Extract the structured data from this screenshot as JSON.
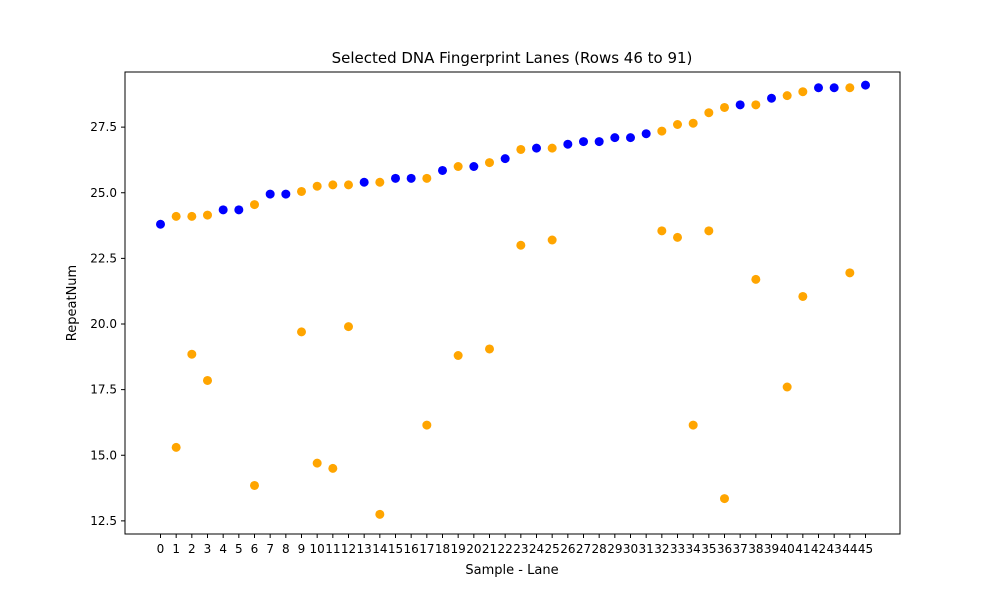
{
  "chart_data": {
    "type": "scatter",
    "title": "Selected DNA Fingerprint Lanes (Rows 46 to 91)",
    "xlabel": "Sample - Lane",
    "ylabel": "RepeatNum",
    "ylim": [
      12.0,
      29.6
    ],
    "yticks": [
      "12.5",
      "15.0",
      "17.5",
      "20.0",
      "22.5",
      "25.0",
      "27.5"
    ],
    "ytick_values": [
      12.5,
      15.0,
      17.5,
      20.0,
      22.5,
      25.0,
      27.5
    ],
    "x_categories": [
      "0",
      "1",
      "2",
      "3",
      "4",
      "5",
      "6",
      "7",
      "8",
      "9",
      "10",
      "11",
      "12",
      "13",
      "14",
      "15",
      "16",
      "17",
      "18",
      "19",
      "20",
      "21",
      "22",
      "23",
      "24",
      "25",
      "26",
      "27",
      "28",
      "29",
      "30",
      "31",
      "32",
      "33",
      "34",
      "35",
      "36",
      "37",
      "38",
      "39",
      "40",
      "41",
      "42",
      "43",
      "44",
      "45"
    ],
    "grid": false,
    "legend": "none",
    "colors": {
      "blue": "#0000ff",
      "orange": "#ffa500"
    },
    "series": [
      {
        "color": "blue",
        "points": [
          {
            "x": 0,
            "y": 23.8
          },
          {
            "x": 4,
            "y": 24.35
          },
          {
            "x": 5,
            "y": 24.35
          },
          {
            "x": 7,
            "y": 24.95
          },
          {
            "x": 8,
            "y": 24.95
          },
          {
            "x": 13,
            "y": 25.4
          },
          {
            "x": 15,
            "y": 25.55
          },
          {
            "x": 16,
            "y": 25.55
          },
          {
            "x": 18,
            "y": 25.85
          },
          {
            "x": 20,
            "y": 26.0
          },
          {
            "x": 22,
            "y": 26.3
          },
          {
            "x": 24,
            "y": 26.7
          },
          {
            "x": 26,
            "y": 26.85
          },
          {
            "x": 27,
            "y": 26.95
          },
          {
            "x": 28,
            "y": 26.95
          },
          {
            "x": 29,
            "y": 27.1
          },
          {
            "x": 30,
            "y": 27.1
          },
          {
            "x": 31,
            "y": 27.25
          },
          {
            "x": 37,
            "y": 28.35
          },
          {
            "x": 39,
            "y": 28.6
          },
          {
            "x": 42,
            "y": 29.0
          },
          {
            "x": 43,
            "y": 29.0
          },
          {
            "x": 45,
            "y": 29.1
          }
        ]
      },
      {
        "color": "orange",
        "points": [
          {
            "x": 1,
            "y": 24.1
          },
          {
            "x": 1,
            "y": 15.3
          },
          {
            "x": 2,
            "y": 24.1
          },
          {
            "x": 2,
            "y": 18.85
          },
          {
            "x": 3,
            "y": 24.15
          },
          {
            "x": 3,
            "y": 17.85
          },
          {
            "x": 6,
            "y": 24.55
          },
          {
            "x": 6,
            "y": 13.85
          },
          {
            "x": 9,
            "y": 25.05
          },
          {
            "x": 9,
            "y": 19.7
          },
          {
            "x": 10,
            "y": 25.25
          },
          {
            "x": 10,
            "y": 14.7
          },
          {
            "x": 11,
            "y": 25.3
          },
          {
            "x": 11,
            "y": 14.5
          },
          {
            "x": 12,
            "y": 25.3
          },
          {
            "x": 12,
            "y": 19.9
          },
          {
            "x": 14,
            "y": 25.4
          },
          {
            "x": 14,
            "y": 12.75
          },
          {
            "x": 17,
            "y": 25.55
          },
          {
            "x": 17,
            "y": 16.15
          },
          {
            "x": 19,
            "y": 26.0
          },
          {
            "x": 19,
            "y": 18.8
          },
          {
            "x": 21,
            "y": 26.15
          },
          {
            "x": 21,
            "y": 19.05
          },
          {
            "x": 23,
            "y": 26.65
          },
          {
            "x": 23,
            "y": 23.0
          },
          {
            "x": 25,
            "y": 26.7
          },
          {
            "x": 25,
            "y": 23.2
          },
          {
            "x": 32,
            "y": 27.35
          },
          {
            "x": 32,
            "y": 23.55
          },
          {
            "x": 33,
            "y": 27.6
          },
          {
            "x": 33,
            "y": 23.3
          },
          {
            "x": 34,
            "y": 27.65
          },
          {
            "x": 34,
            "y": 16.15
          },
          {
            "x": 35,
            "y": 28.05
          },
          {
            "x": 35,
            "y": 23.55
          },
          {
            "x": 36,
            "y": 28.25
          },
          {
            "x": 36,
            "y": 13.35
          },
          {
            "x": 38,
            "y": 28.35
          },
          {
            "x": 38,
            "y": 21.7
          },
          {
            "x": 40,
            "y": 28.7
          },
          {
            "x": 40,
            "y": 17.6
          },
          {
            "x": 41,
            "y": 28.85
          },
          {
            "x": 41,
            "y": 21.05
          },
          {
            "x": 44,
            "y": 29.0
          },
          {
            "x": 44,
            "y": 21.95
          }
        ]
      }
    ]
  }
}
